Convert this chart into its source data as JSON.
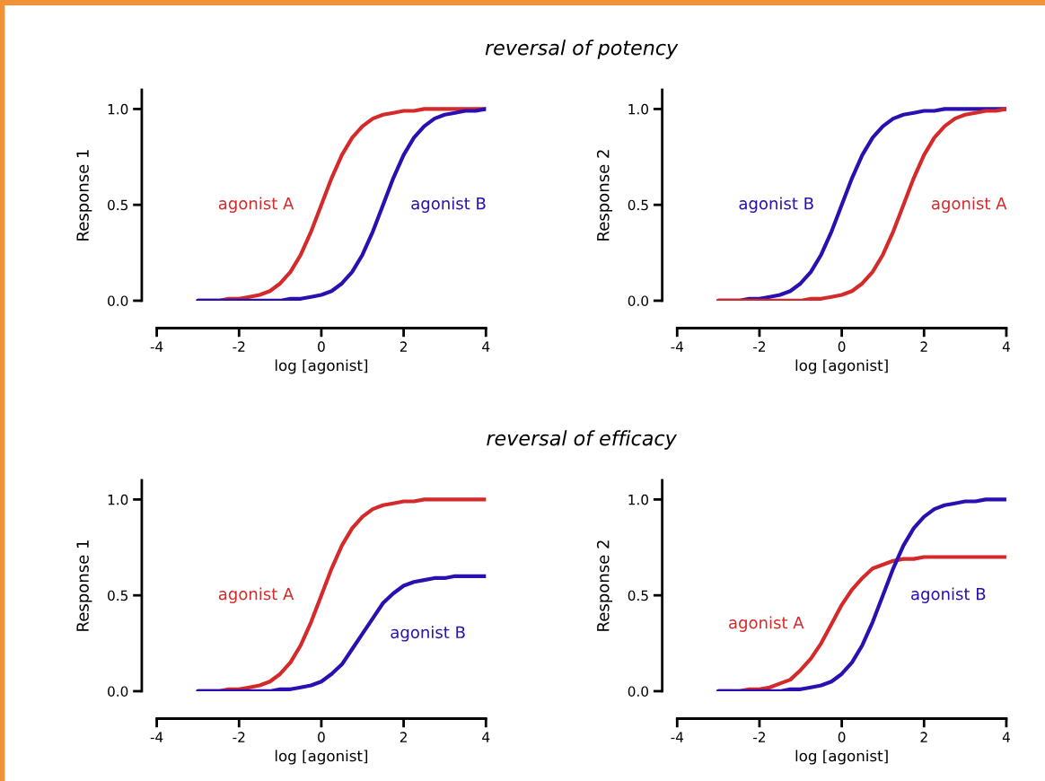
{
  "chart_data": [
    {
      "type": "line",
      "title": "reversal of potency",
      "xlabel": "log [agonist]",
      "ylabel": "Response 1",
      "xlim": [
        -4,
        4
      ],
      "xticks": [
        -4,
        -2,
        0,
        2,
        4
      ],
      "ylim": [
        0,
        1.1
      ],
      "yticks": [
        {
          "value": 0,
          "label": "0.0"
        },
        {
          "value": 0.5,
          "label": "0.5"
        },
        {
          "value": 1,
          "label": "1.0"
        }
      ],
      "grid": false,
      "legend": false,
      "marker": "none",
      "line_style": "solid",
      "x": [
        -3,
        -2.75,
        -2.5,
        -2.25,
        -2,
        -1.75,
        -1.5,
        -1.25,
        -1,
        -0.75,
        -0.5,
        -0.25,
        0,
        0.25,
        0.5,
        0.75,
        1,
        1.25,
        1.5,
        1.75,
        2,
        2.25,
        2.5,
        2.75,
        3,
        3.25,
        3.5,
        3.75,
        4
      ],
      "series": [
        {
          "name": "agonist A",
          "color": "#d42a2a",
          "values": [
            0,
            0,
            0,
            0.01,
            0.01,
            0.02,
            0.03,
            0.05,
            0.09,
            0.15,
            0.24,
            0.36,
            0.5,
            0.64,
            0.76,
            0.85,
            0.91,
            0.95,
            0.97,
            0.98,
            0.99,
            0.99,
            1.0,
            1.0,
            1.0,
            1.0,
            1.0,
            1.0,
            1.0
          ]
        },
        {
          "name": "agonist B",
          "color": "#2a10b0",
          "values": [
            0,
            0,
            0,
            0,
            0,
            0,
            0,
            0,
            0,
            0.01,
            0.01,
            0.02,
            0.03,
            0.05,
            0.09,
            0.15,
            0.24,
            0.36,
            0.5,
            0.64,
            0.76,
            0.85,
            0.91,
            0.95,
            0.97,
            0.98,
            0.99,
            0.99,
            1.0
          ]
        }
      ]
    },
    {
      "type": "line",
      "xlabel": "log [agonist]",
      "ylabel": "Response 2",
      "xlim": [
        -4,
        4
      ],
      "xticks": [
        -4,
        -2,
        0,
        2,
        4
      ],
      "ylim": [
        0,
        1.1
      ],
      "yticks": [
        {
          "value": 0,
          "label": "0.0"
        },
        {
          "value": 0.5,
          "label": "0.5"
        },
        {
          "value": 1,
          "label": "1.0"
        }
      ],
      "grid": false,
      "legend": false,
      "marker": "none",
      "line_style": "solid",
      "x": [
        -3,
        -2.75,
        -2.5,
        -2.25,
        -2,
        -1.75,
        -1.5,
        -1.25,
        -1,
        -0.75,
        -0.5,
        -0.25,
        0,
        0.25,
        0.5,
        0.75,
        1,
        1.25,
        1.5,
        1.75,
        2,
        2.25,
        2.5,
        2.75,
        3,
        3.25,
        3.5,
        3.75,
        4
      ],
      "series": [
        {
          "name": "agonist B",
          "color": "#2a10b0",
          "values": [
            0,
            0,
            0,
            0.01,
            0.01,
            0.02,
            0.03,
            0.05,
            0.09,
            0.15,
            0.24,
            0.36,
            0.5,
            0.64,
            0.76,
            0.85,
            0.91,
            0.95,
            0.97,
            0.98,
            0.99,
            0.99,
            1.0,
            1.0,
            1.0,
            1.0,
            1.0,
            1.0,
            1.0
          ]
        },
        {
          "name": "agonist A",
          "color": "#d42a2a",
          "values": [
            0,
            0,
            0,
            0,
            0,
            0,
            0,
            0,
            0,
            0.01,
            0.01,
            0.02,
            0.03,
            0.05,
            0.09,
            0.15,
            0.24,
            0.36,
            0.5,
            0.64,
            0.76,
            0.85,
            0.91,
            0.95,
            0.97,
            0.98,
            0.99,
            0.99,
            1.0
          ]
        }
      ]
    },
    {
      "type": "line",
      "title": "reversal of efficacy",
      "xlabel": "log [agonist]",
      "ylabel": "Response 1",
      "xlim": [
        -4,
        4
      ],
      "xticks": [
        -4,
        -2,
        0,
        2,
        4
      ],
      "ylim": [
        0,
        1.1
      ],
      "yticks": [
        {
          "value": 0,
          "label": "0.0"
        },
        {
          "value": 0.5,
          "label": "0.5"
        },
        {
          "value": 1,
          "label": "1.0"
        }
      ],
      "grid": false,
      "legend": false,
      "marker": "none",
      "line_style": "solid",
      "x": [
        -3,
        -2.75,
        -2.5,
        -2.25,
        -2,
        -1.75,
        -1.5,
        -1.25,
        -1,
        -0.75,
        -0.5,
        -0.25,
        0,
        0.25,
        0.5,
        0.75,
        1,
        1.25,
        1.5,
        1.75,
        2,
        2.25,
        2.5,
        2.75,
        3,
        3.25,
        3.5,
        3.75,
        4
      ],
      "series": [
        {
          "name": "agonist A",
          "color": "#d42a2a",
          "values": [
            0,
            0,
            0,
            0.01,
            0.01,
            0.02,
            0.03,
            0.05,
            0.09,
            0.15,
            0.24,
            0.36,
            0.5,
            0.64,
            0.76,
            0.85,
            0.91,
            0.95,
            0.97,
            0.98,
            0.99,
            0.99,
            1.0,
            1.0,
            1.0,
            1.0,
            1.0,
            1.0,
            1.0
          ]
        },
        {
          "name": "agonist B",
          "color": "#2a10b0",
          "values": [
            0,
            0,
            0,
            0,
            0,
            0,
            0,
            0,
            0.01,
            0.01,
            0.02,
            0.03,
            0.05,
            0.09,
            0.14,
            0.22,
            0.3,
            0.38,
            0.46,
            0.51,
            0.55,
            0.57,
            0.58,
            0.59,
            0.59,
            0.6,
            0.6,
            0.6,
            0.6
          ]
        }
      ]
    },
    {
      "type": "line",
      "xlabel": "log [agonist]",
      "ylabel": "Response 2",
      "xlim": [
        -4,
        4
      ],
      "xticks": [
        -4,
        -2,
        0,
        2,
        4
      ],
      "ylim": [
        0,
        1.1
      ],
      "yticks": [
        {
          "value": 0,
          "label": "0.0"
        },
        {
          "value": 0.5,
          "label": "0.5"
        },
        {
          "value": 1,
          "label": "1.0"
        }
      ],
      "grid": false,
      "legend": false,
      "marker": "none",
      "line_style": "solid",
      "x": [
        -3,
        -2.75,
        -2.5,
        -2.25,
        -2,
        -1.75,
        -1.5,
        -1.25,
        -1,
        -0.75,
        -0.5,
        -0.25,
        0,
        0.25,
        0.5,
        0.75,
        1,
        1.25,
        1.5,
        1.75,
        2,
        2.25,
        2.5,
        2.75,
        3,
        3.25,
        3.5,
        3.75,
        4
      ],
      "series": [
        {
          "name": "agonist A",
          "color": "#d42a2a",
          "values": [
            0,
            0,
            0,
            0.01,
            0.01,
            0.02,
            0.04,
            0.06,
            0.11,
            0.17,
            0.25,
            0.35,
            0.45,
            0.53,
            0.59,
            0.64,
            0.66,
            0.68,
            0.69,
            0.69,
            0.7,
            0.7,
            0.7,
            0.7,
            0.7,
            0.7,
            0.7,
            0.7,
            0.7
          ]
        },
        {
          "name": "agonist B",
          "color": "#2a10b0",
          "values": [
            0,
            0,
            0,
            0,
            0,
            0,
            0,
            0.01,
            0.01,
            0.02,
            0.03,
            0.05,
            0.09,
            0.15,
            0.24,
            0.36,
            0.5,
            0.64,
            0.76,
            0.85,
            0.91,
            0.95,
            0.97,
            0.98,
            0.99,
            0.99,
            1.0,
            1.0,
            1.0
          ]
        }
      ]
    }
  ]
}
